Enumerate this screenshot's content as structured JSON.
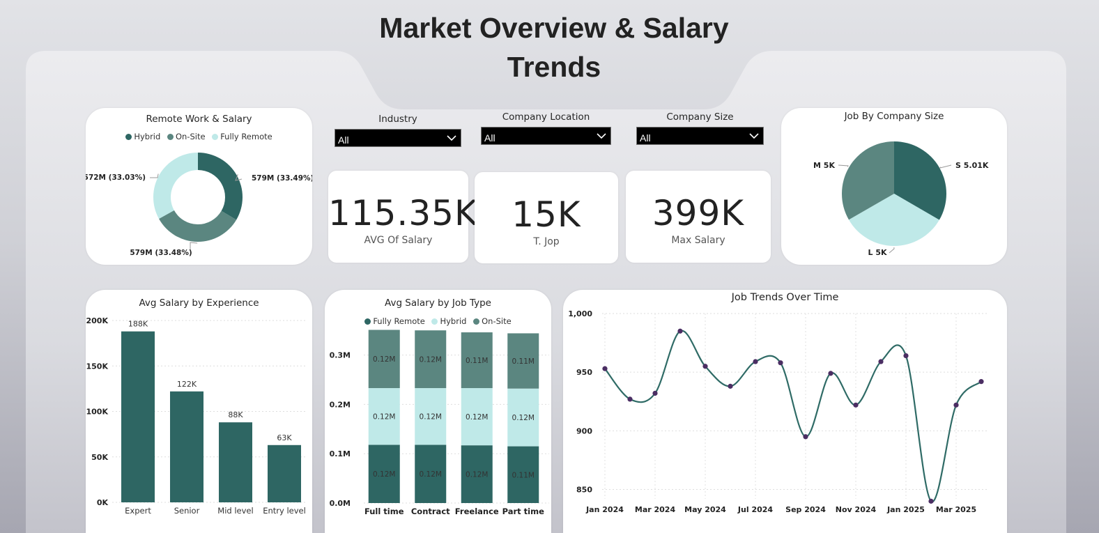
{
  "page": {
    "title": "Market Overview & Salary Trends"
  },
  "colors": {
    "dark": "#2e6663",
    "mid": "#5b8680",
    "light": "#bfe9e8",
    "line": "#2f6b66",
    "point": "#4b2e63"
  },
  "slicers": [
    {
      "label": "Industry",
      "value": "All"
    },
    {
      "label": "Company Location",
      "value": "All"
    },
    {
      "label": "Company Size",
      "value": "All"
    }
  ],
  "kpis": [
    {
      "value": "115.35K",
      "label": "AVG Of Salary"
    },
    {
      "value": "15K",
      "label": "T. Jop"
    },
    {
      "value": "399K",
      "label": "Max Salary"
    }
  ],
  "chart_data": [
    {
      "type": "pie",
      "subtype": "donut",
      "title": "Remote Work & Salary",
      "legend_position": "top",
      "labels": [
        "Hybrid",
        "On-Site",
        "Fully Remote"
      ],
      "values": [
        579,
        579,
        572
      ],
      "unit": "M",
      "percents": [
        33.49,
        33.48,
        33.03
      ],
      "data_labels": [
        "579M (33.49%)",
        "579M (33.48%)",
        "572M (33.03%)"
      ]
    },
    {
      "type": "pie",
      "title": "Job By Company Size",
      "labels": [
        "S",
        "L",
        "M"
      ],
      "values": [
        5010,
        5000,
        5000
      ],
      "data_labels": [
        "S 5.01K",
        "L 5K",
        "M 5K"
      ]
    },
    {
      "type": "bar",
      "title": "Avg Salary by Experience",
      "categories": [
        "Expert",
        "Senior",
        "Mid level",
        "Entry level"
      ],
      "values": [
        188000,
        122000,
        88000,
        63000
      ],
      "data_labels": [
        "188K",
        "122K",
        "88K",
        "63K"
      ],
      "ylim": [
        0,
        200000
      ],
      "y_ticks": [
        0,
        50000,
        100000,
        150000,
        200000
      ],
      "y_tick_labels": [
        "0K",
        "50K",
        "100K",
        "150K",
        "200K"
      ],
      "grid": true
    },
    {
      "type": "bar",
      "subtype": "stacked",
      "title": "Avg Salary by Job Type",
      "legend_position": "top",
      "categories": [
        "Full time",
        "Contract",
        "Freelance",
        "Part time"
      ],
      "series": [
        {
          "name": "Fully Remote",
          "values": [
            0.118,
            0.118,
            0.117,
            0.115
          ],
          "data_labels": [
            "0.12M",
            "0.12M",
            "0.12M",
            "0.11M"
          ]
        },
        {
          "name": "Hybrid",
          "values": [
            0.115,
            0.115,
            0.116,
            0.117
          ],
          "data_labels": [
            "0.12M",
            "0.12M",
            "0.12M",
            "0.12M"
          ]
        },
        {
          "name": "On-Site",
          "values": [
            0.118,
            0.117,
            0.113,
            0.112
          ],
          "data_labels": [
            "0.12M",
            "0.12M",
            "0.11M",
            "0.11M"
          ]
        }
      ],
      "ylim": [
        0,
        0.37
      ],
      "y_ticks": [
        0,
        0.1,
        0.2,
        0.3
      ],
      "y_tick_labels": [
        "0.0M",
        "0.1M",
        "0.2M",
        "0.3M"
      ],
      "grid": true
    },
    {
      "type": "line",
      "title": "Job Trends Over Time",
      "x": [
        "2024-01",
        "2024-02",
        "2024-03",
        "2024-04",
        "2024-05",
        "2024-06",
        "2024-07",
        "2024-08",
        "2024-09",
        "2024-10",
        "2024-11",
        "2024-12",
        "2025-01",
        "2025-02",
        "2025-03",
        "2025-04"
      ],
      "values": [
        953,
        927,
        932,
        985,
        955,
        938,
        959,
        958,
        895,
        949,
        922,
        959,
        964,
        840,
        922,
        942
      ],
      "x_tick_labels": [
        "Jan 2024",
        "Mar 2024",
        "May 2024",
        "Jul 2024",
        "Sep 2024",
        "Nov 2024",
        "Jan 2025",
        "Mar 2025"
      ],
      "ylim": [
        842,
        1000
      ],
      "y_ticks": [
        850,
        900,
        950,
        1000
      ],
      "y_tick_labels": [
        "850",
        "900",
        "950",
        "1,000"
      ],
      "grid": true
    }
  ]
}
